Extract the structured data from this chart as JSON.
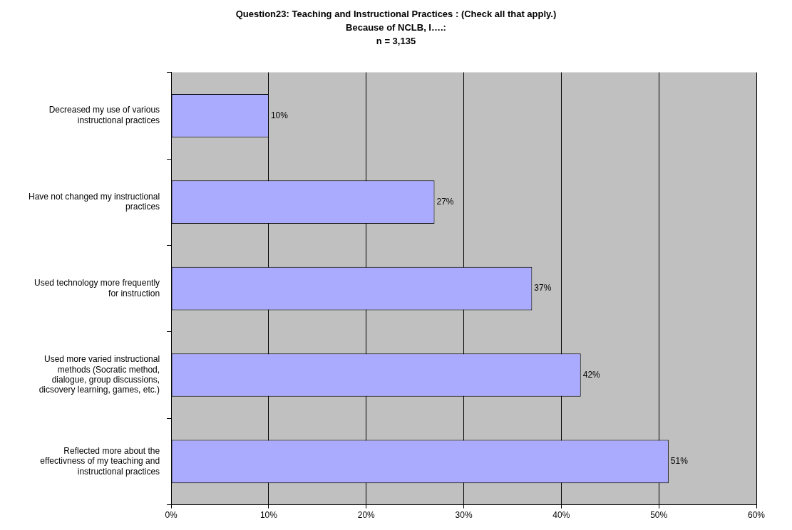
{
  "chart_data": {
    "type": "bar",
    "orientation": "horizontal",
    "title": "Question23: Teaching and Instructional Practices : (Check all that apply.)",
    "subtitle": "Because of NCLB, I….:\nn = 3,135",
    "categories": [
      "Decreased my use of various instructional practices",
      "Have not changed my instructional practices",
      "Used technology more frequently for instruction",
      "Used more varied instructional methods (Socratic method, dialogue, group discussions, dicsovery learning, games, etc.)",
      "Reflected more about the effectivness of my teaching and instructional practices"
    ],
    "values": [
      10,
      27,
      37,
      42,
      51
    ],
    "value_labels": [
      "10%",
      "27%",
      "37%",
      "42%",
      "51%"
    ],
    "color": "#aaaaff",
    "xlim": [
      0,
      60
    ],
    "xticks": [
      {
        "value": 0,
        "label": "0%"
      },
      {
        "value": 10,
        "label": "10%"
      },
      {
        "value": 20,
        "label": "20%"
      },
      {
        "value": 30,
        "label": "30%"
      },
      {
        "value": 40,
        "label": "40%"
      },
      {
        "value": 50,
        "label": "50%"
      },
      {
        "value": 60,
        "label": "60%"
      }
    ],
    "grid": "x",
    "legend": false
  }
}
